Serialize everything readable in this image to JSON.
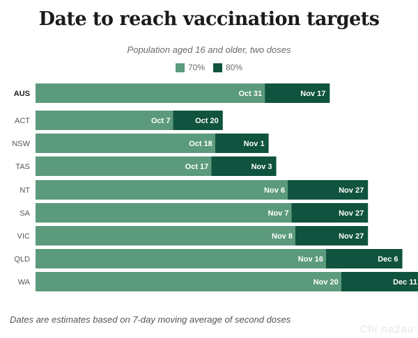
{
  "title": "Date to reach vaccination targets",
  "subtitle": "Population aged 16 and older, two doses",
  "footnote": "Dates are estimates based on 7-day moving average of second doses",
  "watermark": "Chi na2au",
  "colors": {
    "target_70": "#5b9a7c",
    "target_80": "#10533f"
  },
  "chart_data": {
    "type": "bar",
    "orientation": "horizontal",
    "stacked": true,
    "x_reference_date": "2021-09-01",
    "legend": [
      "70%",
      "80%"
    ],
    "legend_position": "top-center",
    "grid": false,
    "categories": [
      "AUS",
      "ACT",
      "NSW",
      "TAS",
      "NT",
      "SA",
      "VIC",
      "QLD",
      "WA"
    ],
    "series": [
      {
        "name": "70%",
        "labels": [
          "Oct 31",
          "Oct 7",
          "Oct 18",
          "Oct 17",
          "Nov 6",
          "Nov 7",
          "Nov 8",
          "Nov 16",
          "Nov 20"
        ],
        "dates": [
          "2021-10-31",
          "2021-10-07",
          "2021-10-18",
          "2021-10-17",
          "2021-11-06",
          "2021-11-07",
          "2021-11-08",
          "2021-11-16",
          "2021-11-20"
        ]
      },
      {
        "name": "80%",
        "labels": [
          "Nov 17",
          "Oct 20",
          "Nov 1",
          "Nov 3",
          "Nov 27",
          "Nov 27",
          "Nov 27",
          "Dec 6",
          "Dec 11"
        ],
        "dates": [
          "2021-11-17",
          "2021-10-20",
          "2021-11-01",
          "2021-11-03",
          "2021-11-27",
          "2021-11-27",
          "2021-11-27",
          "2021-12-06",
          "2021-12-11"
        ]
      }
    ]
  }
}
